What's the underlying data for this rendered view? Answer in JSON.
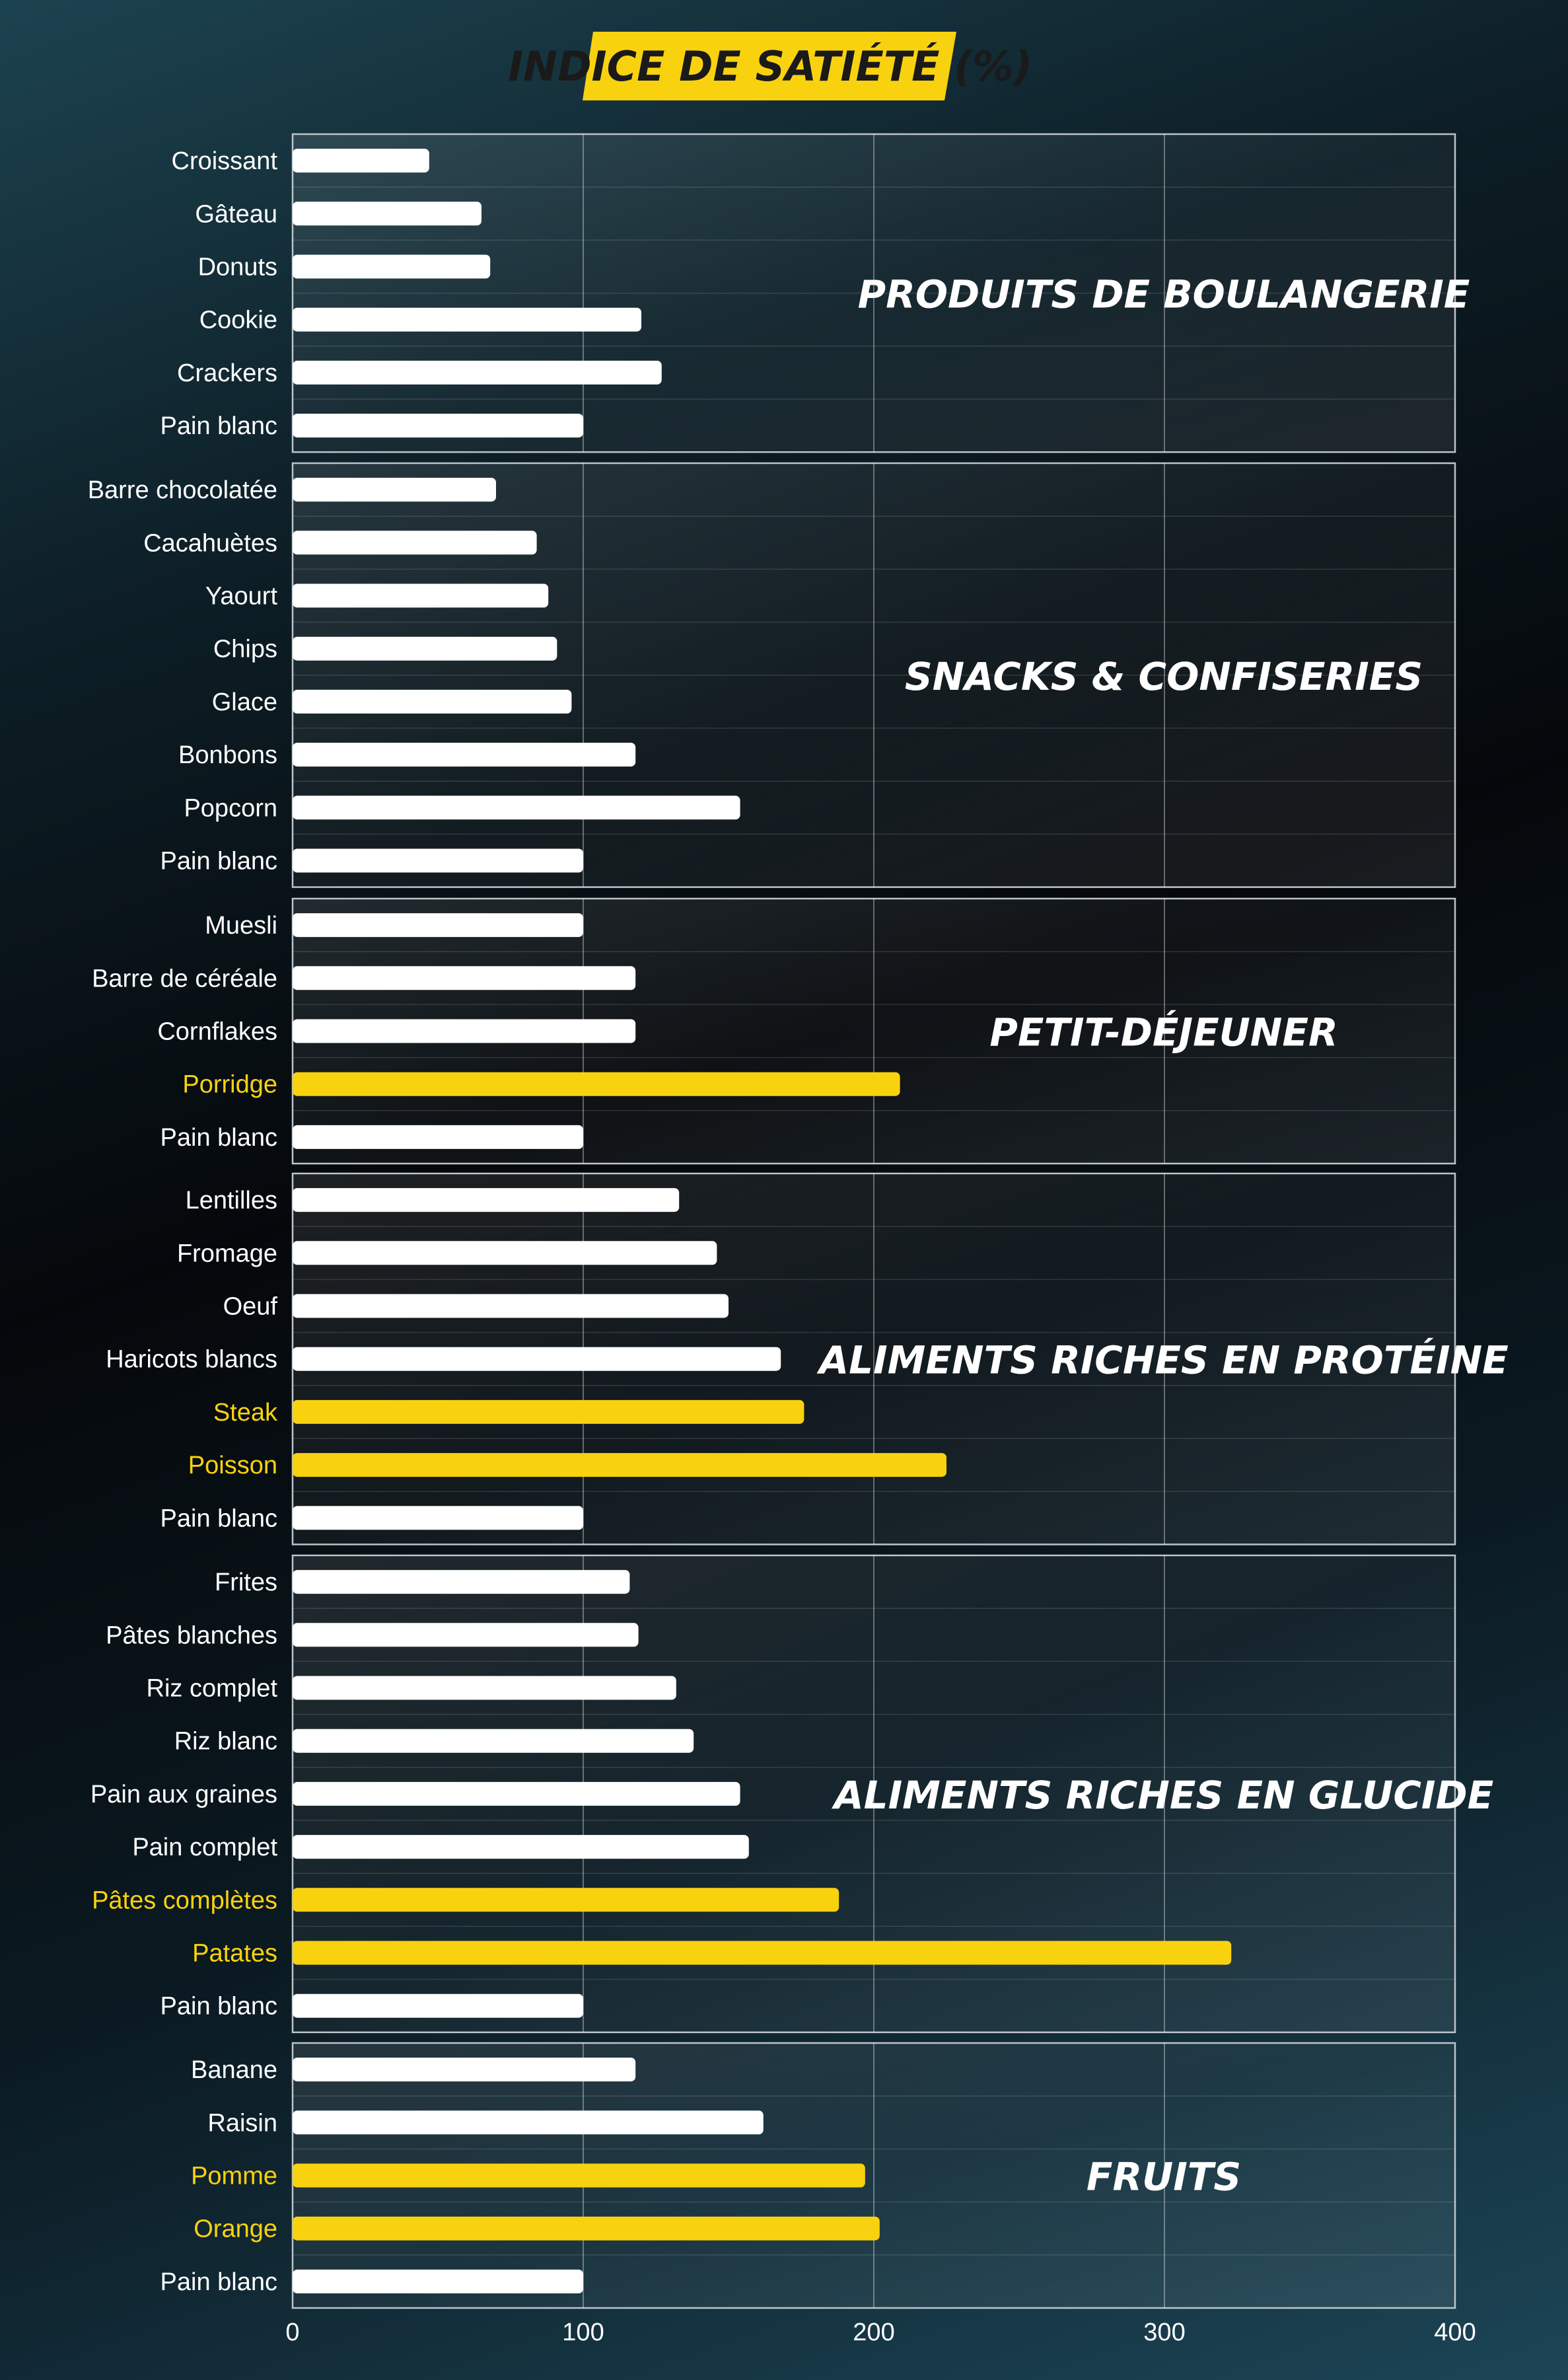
{
  "chart_data": {
    "type": "bar",
    "orientation": "horizontal",
    "title": "INDICE DE SATIÉTÉ (%)",
    "xlim": [
      0,
      400
    ],
    "x_ticks": [
      0,
      100,
      200,
      300,
      400
    ],
    "grid": true,
    "colors": {
      "normal": "#ffffff",
      "highlight": "#f9d20f",
      "title_bg": "#f9d20f",
      "title_text": "#1a1a1a",
      "label_normal": "#ffffff",
      "label_highlight": "#f9d20f",
      "frame": "#bcc4c9"
    },
    "groups": [
      {
        "name": "PRODUITS DE BOULANGERIE",
        "items": [
          {
            "label": "Croissant",
            "value": 47,
            "highlight": false
          },
          {
            "label": "Gâteau",
            "value": 65,
            "highlight": false
          },
          {
            "label": "Donuts",
            "value": 68,
            "highlight": false
          },
          {
            "label": "Cookie",
            "value": 120,
            "highlight": false
          },
          {
            "label": "Crackers",
            "value": 127,
            "highlight": false
          },
          {
            "label": "Pain blanc",
            "value": 100,
            "highlight": false
          }
        ]
      },
      {
        "name": "SNACKS & CONFISERIES",
        "items": [
          {
            "label": "Barre chocolatée",
            "value": 70,
            "highlight": false
          },
          {
            "label": "Cacahuètes",
            "value": 84,
            "highlight": false
          },
          {
            "label": "Yaourt",
            "value": 88,
            "highlight": false
          },
          {
            "label": "Chips",
            "value": 91,
            "highlight": false
          },
          {
            "label": "Glace",
            "value": 96,
            "highlight": false
          },
          {
            "label": "Bonbons",
            "value": 118,
            "highlight": false
          },
          {
            "label": "Popcorn",
            "value": 154,
            "highlight": false
          },
          {
            "label": "Pain blanc",
            "value": 100,
            "highlight": false
          }
        ]
      },
      {
        "name": "PETIT-DÉJEUNER",
        "items": [
          {
            "label": "Muesli",
            "value": 100,
            "highlight": false
          },
          {
            "label": "Barre de céréale",
            "value": 118,
            "highlight": false
          },
          {
            "label": "Cornflakes",
            "value": 118,
            "highlight": false
          },
          {
            "label": "Porridge",
            "value": 209,
            "highlight": true
          },
          {
            "label": "Pain blanc",
            "value": 100,
            "highlight": false
          }
        ]
      },
      {
        "name": "ALIMENTS RICHES EN PROTÉINE",
        "items": [
          {
            "label": "Lentilles",
            "value": 133,
            "highlight": false
          },
          {
            "label": "Fromage",
            "value": 146,
            "highlight": false
          },
          {
            "label": "Oeuf",
            "value": 150,
            "highlight": false
          },
          {
            "label": "Haricots blancs",
            "value": 168,
            "highlight": false
          },
          {
            "label": "Steak",
            "value": 176,
            "highlight": true
          },
          {
            "label": "Poisson",
            "value": 225,
            "highlight": true
          },
          {
            "label": "Pain blanc",
            "value": 100,
            "highlight": false
          }
        ]
      },
      {
        "name": "ALIMENTS RICHES EN GLUCIDE",
        "items": [
          {
            "label": "Frites",
            "value": 116,
            "highlight": false
          },
          {
            "label": "Pâtes blanches",
            "value": 119,
            "highlight": false
          },
          {
            "label": "Riz complet",
            "value": 132,
            "highlight": false
          },
          {
            "label": "Riz blanc",
            "value": 138,
            "highlight": false
          },
          {
            "label": "Pain aux graines",
            "value": 154,
            "highlight": false
          },
          {
            "label": "Pain complet",
            "value": 157,
            "highlight": false
          },
          {
            "label": "Pâtes complètes",
            "value": 188,
            "highlight": true
          },
          {
            "label": "Patates",
            "value": 323,
            "highlight": true
          },
          {
            "label": "Pain blanc",
            "value": 100,
            "highlight": false
          }
        ]
      },
      {
        "name": "FRUITS",
        "items": [
          {
            "label": "Banane",
            "value": 118,
            "highlight": false
          },
          {
            "label": "Raisin",
            "value": 162,
            "highlight": false
          },
          {
            "label": "Pomme",
            "value": 197,
            "highlight": true
          },
          {
            "label": "Orange",
            "value": 202,
            "highlight": true
          },
          {
            "label": "Pain blanc",
            "value": 100,
            "highlight": false
          }
        ]
      }
    ]
  }
}
